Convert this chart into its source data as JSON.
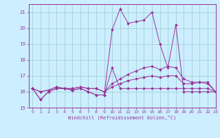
{
  "xlabel": "Windchill (Refroidissement éolien,°C)",
  "bg_color": "#cceeff",
  "line_color": "#993399",
  "grid_color": "#99cccc",
  "xlim": [
    -0.5,
    23
  ],
  "ylim": [
    15,
    21.5
  ],
  "yticks": [
    15,
    16,
    17,
    18,
    19,
    20,
    21
  ],
  "xticks": [
    0,
    1,
    2,
    3,
    4,
    5,
    6,
    7,
    8,
    9,
    10,
    11,
    12,
    13,
    14,
    15,
    16,
    17,
    18,
    19,
    20,
    21,
    22,
    23
  ],
  "series": [
    [
      16.2,
      15.5,
      16.0,
      16.2,
      16.2,
      16.1,
      16.2,
      16.0,
      15.8,
      15.8,
      19.9,
      21.2,
      20.3,
      20.4,
      20.5,
      21.0,
      19.0,
      17.5,
      20.2,
      16.0,
      16.0,
      16.0,
      16.0,
      16.0
    ],
    [
      16.2,
      15.5,
      16.0,
      16.2,
      16.2,
      16.1,
      16.2,
      16.0,
      15.8,
      15.8,
      17.5,
      16.2,
      16.2,
      16.2,
      16.2,
      16.2,
      16.2,
      16.2,
      16.2,
      16.2,
      16.2,
      16.2,
      16.2,
      16.0
    ],
    [
      16.2,
      16.0,
      16.1,
      16.3,
      16.2,
      16.2,
      16.3,
      16.2,
      16.2,
      16.0,
      16.5,
      16.8,
      17.1,
      17.3,
      17.5,
      17.6,
      17.4,
      17.6,
      17.5,
      16.8,
      16.6,
      16.6,
      16.6,
      16.0
    ],
    [
      16.2,
      16.0,
      16.1,
      16.3,
      16.2,
      16.2,
      16.3,
      16.2,
      16.2,
      16.0,
      16.3,
      16.5,
      16.7,
      16.8,
      16.9,
      17.0,
      16.9,
      17.0,
      17.0,
      16.5,
      16.5,
      16.6,
      16.5,
      16.0
    ]
  ]
}
